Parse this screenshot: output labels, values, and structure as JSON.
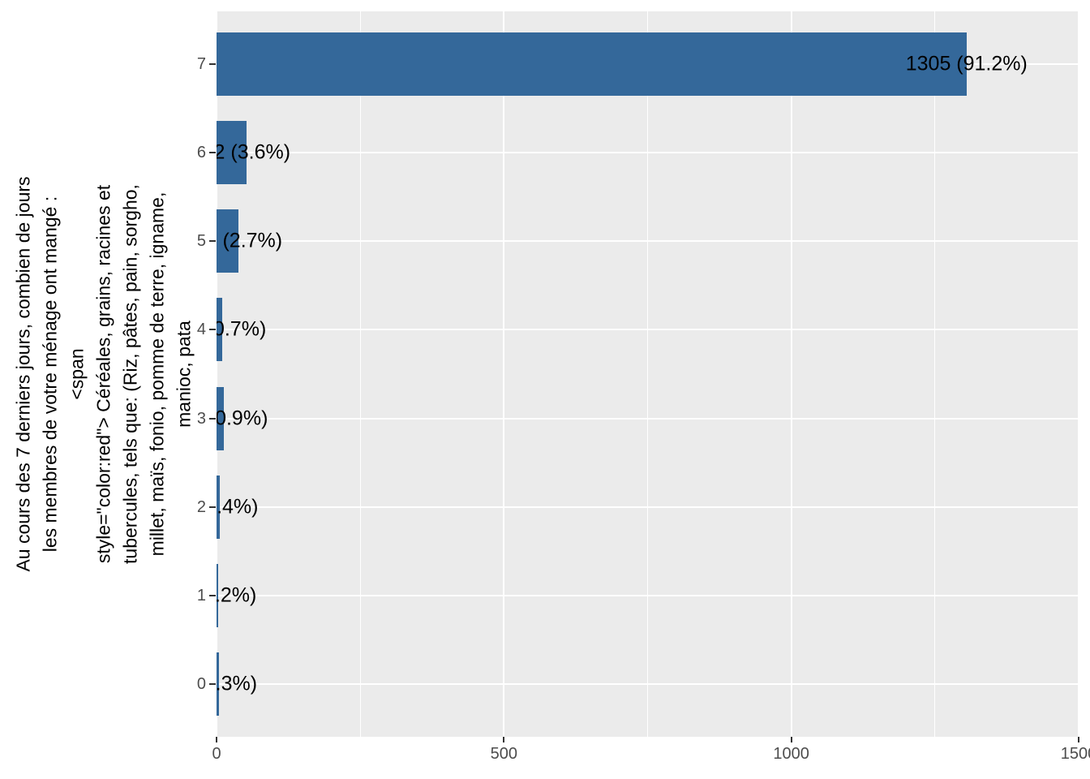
{
  "chart_data": {
    "type": "bar",
    "orientation": "horizontal",
    "title": "",
    "xlabel": "",
    "ylabel_lines": [
      "Au cours des 7 derniers jours, combien de jours",
      "les membres de votre ménage ont mangé :",
      "<span",
      "style=\"color:red\"> Céréales, grains, racines et",
      "tubercules, tels que: (Riz, pâtes, pain, sorgho,",
      "millet, maïs, fonio, pomme de terre, igname,",
      "manioc, pata"
    ],
    "categories": [
      "7",
      "6",
      "5",
      "4",
      "3",
      "2",
      "1",
      "0"
    ],
    "values": [
      1305,
      52,
      38,
      10,
      13,
      6,
      3,
      4
    ],
    "bar_labels": [
      "1305 (91.2%)",
      "52 (3.6%)",
      "38 (2.7%)",
      "10 (0.7%)",
      "13 (0.9%)",
      "6 (0.4%)",
      "3 (0.2%)",
      "4 (0.3%)"
    ],
    "xlim": [
      0,
      1500
    ],
    "x_major_ticks": [
      0,
      500,
      1000,
      1500
    ],
    "x_major_tick_labels": [
      "0",
      "500",
      "1000",
      "1500"
    ],
    "x_minor_ticks": [
      250,
      750,
      1250
    ],
    "grid": "vertical major+minor white, horizontal major white at each category",
    "legend_position": "none",
    "colors": {
      "bar_fill": "#34689A",
      "panel_background": "#EBEBEB",
      "gridline": "#FFFFFF",
      "axis_text": "#4D4D4D",
      "bar_label_text": "#000000",
      "axis_title_text": "#000000",
      "tick_mark": "#333333",
      "page_background": "#FFFFFF"
    }
  }
}
